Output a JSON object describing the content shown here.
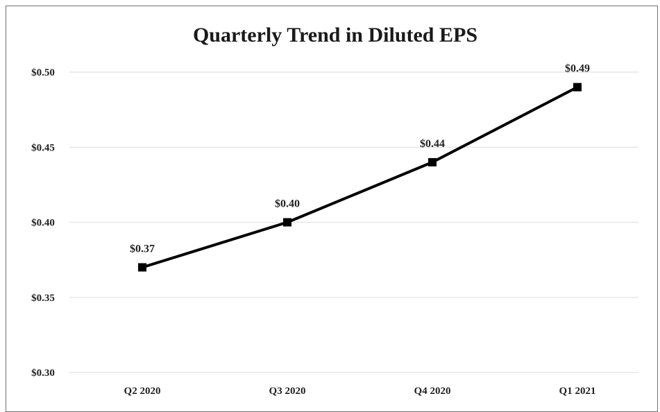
{
  "chart_data": {
    "type": "line",
    "title": "Quarterly Trend in Diluted EPS",
    "xlabel": "",
    "ylabel": "",
    "categories": [
      "Q2 2020",
      "Q3 2020",
      "Q4 2020",
      "Q1 2021"
    ],
    "series": [
      {
        "values": [
          0.37,
          0.4,
          0.44,
          0.49
        ],
        "data_labels": [
          "$0.37",
          "$0.40",
          "$0.44",
          "$0.49"
        ],
        "color": "#000000",
        "marker": "square"
      }
    ],
    "ylim": [
      0.3,
      0.5
    ],
    "yticks": [
      0.3,
      0.35,
      0.4,
      0.45,
      0.5
    ],
    "ytick_labels": [
      "$0.30",
      "$0.35",
      "$0.40",
      "$0.45",
      "$0.50"
    ],
    "grid": true,
    "legend": "none"
  }
}
